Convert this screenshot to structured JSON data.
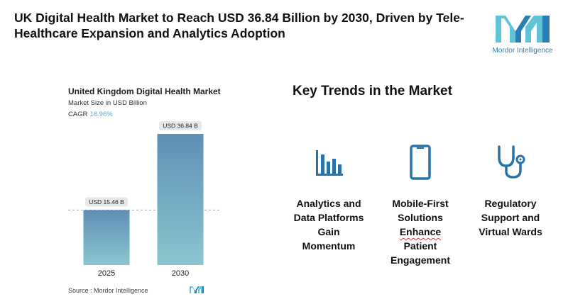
{
  "headline": "UK Digital Health Market to Reach USD 36.84 Billion by 2030, Driven by Tele-Healthcare Expansion and Analytics Adoption",
  "brand": {
    "name": "Mordor Intelligence",
    "colors": {
      "dark": "#1f5f8b",
      "light": "#5ec4d6"
    }
  },
  "chart_data": {
    "type": "bar",
    "title": "United Kingdom Digital Health Market",
    "subtitle": "Market Size in USD Billion",
    "cagr_label": "CAGR",
    "cagr_value": "18.96%",
    "categories": [
      "2025",
      "2030"
    ],
    "values": [
      15.46,
      36.84
    ],
    "data_labels": [
      "USD 15.46 B",
      "USD 36.84 B"
    ],
    "ylim": [
      0,
      36.84
    ],
    "xlabel": "",
    "ylabel": "",
    "grid": false,
    "reference_line": "dashed line at 2025 value",
    "colors": {
      "bar_top": "#5f8fb5",
      "bar_bottom": "#8ac6cf"
    }
  },
  "source": "Source :  Mordor Intelligence",
  "trends": {
    "title": "Key Trends in the Market",
    "items": [
      {
        "icon": "bar-chart-icon",
        "lines": [
          "Analytics and",
          "Data Platforms",
          "Gain",
          "Momentum"
        ]
      },
      {
        "icon": "smartphone-icon",
        "lines": [
          "Mobile-First",
          "Solutions",
          "Enhance",
          "Patient",
          "Engagement"
        ]
      },
      {
        "icon": "stethoscope-icon",
        "lines": [
          "Regulatory",
          "Support and",
          "Virtual Wards"
        ]
      }
    ],
    "icon_color": "#2a73a8"
  }
}
